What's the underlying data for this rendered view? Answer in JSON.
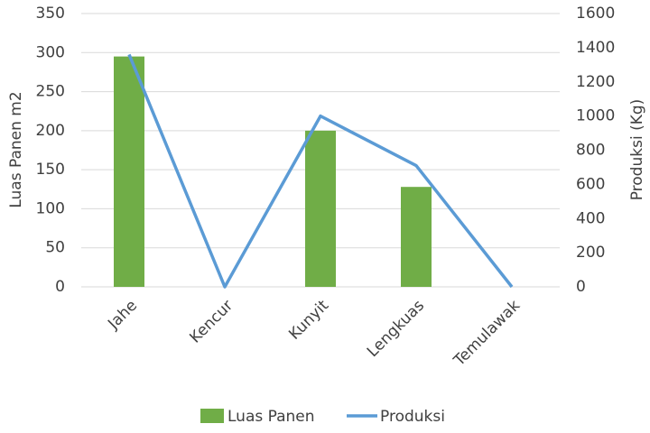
{
  "chart_data": {
    "type": "bar_line",
    "categories": [
      "Jahe",
      "Kencur",
      "Kunyit",
      "Lengkuas",
      "Temulawak"
    ],
    "series": [
      {
        "name": "Luas Panen",
        "color": "#70ad47",
        "values": [
          295,
          0,
          200,
          128,
          0
        ]
      },
      {
        "name": "Produksi",
        "color": "#5b9bd5",
        "values": [
          1360,
          0,
          1000,
          710,
          0
        ],
        "axis": "y2"
      }
    ],
    "ylabel": "Luas Panen m2",
    "y2label": "Produksi (Kg)",
    "ylim": [
      0,
      350
    ],
    "yticks": [
      0,
      50,
      100,
      150,
      200,
      250,
      300,
      350
    ],
    "y2lim": [
      0,
      1600
    ],
    "y2ticks": [
      0,
      200,
      400,
      600,
      800,
      1000,
      1200,
      1400,
      1600
    ],
    "grid": true,
    "legend": "bottom"
  }
}
